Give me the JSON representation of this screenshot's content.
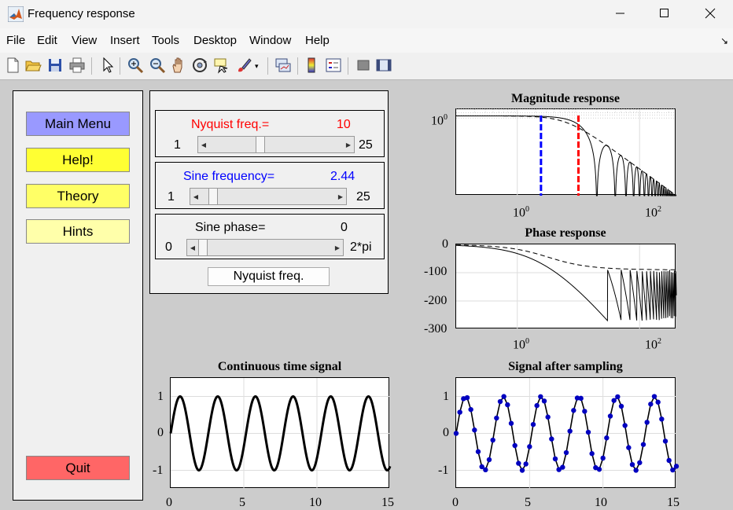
{
  "window": {
    "title": "Frequency response"
  },
  "menu": [
    "File",
    "Edit",
    "View",
    "Insert",
    "Tools",
    "Desktop",
    "Window",
    "Help"
  ],
  "toolbar_icons": [
    "new-file-icon",
    "open-folder-icon",
    "save-icon",
    "print-icon",
    "pointer-icon",
    "zoom-in-icon",
    "zoom-out-icon",
    "pan-hand-icon",
    "rotate-3d-icon",
    "data-cursor-icon",
    "brush-icon",
    "link-plot-icon",
    "colorbar-icon",
    "legend-icon",
    "hide-plot-tools-icon",
    "show-plot-tools-icon"
  ],
  "left_menu": {
    "main_menu": "Main Menu",
    "help": "Help!",
    "theory": "Theory",
    "hints": "Hints",
    "quit": "Quit"
  },
  "controls": {
    "nyquist": {
      "label": "Nyquist freq.=",
      "value": "10",
      "min": "1",
      "max": "25",
      "fraction": 0.375
    },
    "sine_freq": {
      "label": "Sine frequency=",
      "value": "2.44",
      "min": "1",
      "max": "25",
      "fraction": 0.06
    },
    "sine_phase": {
      "label": "Sine phase=",
      "value": "0",
      "min": "0",
      "max": "2*pi",
      "fraction": 0.0
    },
    "button": "Nyquist freq."
  },
  "colors": {
    "nyquist": "#ff0000",
    "sine": "#0000ff",
    "main_menu_bg": "#9999ff",
    "help_bg": "#ffff33",
    "theory_bg": "#ffff66",
    "hints_bg": "#ffffaa",
    "quit_bg": "#ff6666",
    "sample_dot": "#0000c0"
  },
  "chart_data": [
    {
      "type": "line",
      "title": "Magnitude response",
      "xscale": "log",
      "yscale": "log",
      "xlim": [
        0.1,
        400
      ],
      "xticks": [
        "10",
        "10"
      ],
      "xtick_exps": [
        "0",
        "2"
      ],
      "yticks": [
        "10"
      ],
      "ytick_exps": [
        "0"
      ],
      "vlines": [
        {
          "x": 2.44,
          "color": "blue"
        },
        {
          "x": 10,
          "color": "red"
        }
      ],
      "series": [
        {
          "style": "dashed",
          "note": "continuous sinc envelope"
        },
        {
          "style": "solid",
          "note": "sampled with nulls"
        }
      ]
    },
    {
      "type": "line",
      "title": "Phase response",
      "xscale": "log",
      "xlim": [
        0.1,
        400
      ],
      "ylim": [
        -300,
        0
      ],
      "xticks": [
        "10",
        "10"
      ],
      "xtick_exps": [
        "0",
        "2"
      ],
      "yticks": [
        "0",
        "-100",
        "-200",
        "-300"
      ]
    },
    {
      "type": "line",
      "title": "Continuous time signal",
      "xlim": [
        0,
        15
      ],
      "ylim": [
        -1.5,
        1.5
      ],
      "xticks": [
        "0",
        "5",
        "10",
        "15"
      ],
      "yticks": [
        "1",
        "0",
        "-1"
      ],
      "frequency": 2.44,
      "phase": 0
    },
    {
      "type": "line",
      "title": "Signal after sampling",
      "xlim": [
        0,
        15
      ],
      "ylim": [
        -1.5,
        1.5
      ],
      "xticks": [
        "0",
        "5",
        "10",
        "15"
      ],
      "yticks": [
        "1",
        "0",
        "-1"
      ],
      "sample_step": 0.25,
      "frequency": 2.44
    }
  ]
}
